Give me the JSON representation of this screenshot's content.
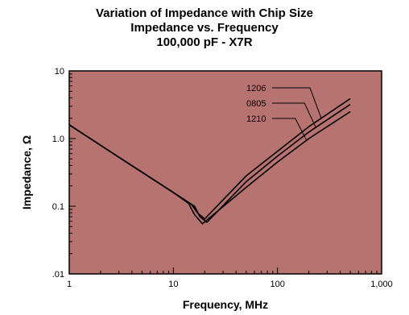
{
  "chart_data": {
    "type": "line",
    "title": "Variation of Impedance with Chip Size",
    "subtitle": "Impedance vs. Frequency",
    "subtitle2": "100,000 pF - X7R",
    "xlabel": "Frequency, MHz",
    "ylabel": "Impedance, Ω",
    "xscale": "log",
    "yscale": "log",
    "xlim": [
      1,
      1000
    ],
    "ylim": [
      0.01,
      10
    ],
    "x_ticks": [
      1,
      10,
      100,
      1000
    ],
    "x_tick_labels": [
      "1",
      "10",
      "100",
      "1,000"
    ],
    "y_ticks": [
      0.01,
      0.1,
      1,
      10
    ],
    "y_tick_labels": [
      ".01",
      "0.1",
      "1.0",
      "10"
    ],
    "grid": false,
    "legend": "annotated labels, upper right",
    "series": [
      {
        "name": "1206",
        "x": [
          1,
          3,
          10,
          15,
          17,
          20,
          50,
          100,
          200,
          500
        ],
        "y": [
          1.6,
          0.53,
          0.16,
          0.105,
          0.08,
          0.065,
          0.28,
          0.65,
          1.5,
          3.9
        ]
      },
      {
        "name": "0805",
        "x": [
          1,
          3,
          10,
          16,
          18,
          21,
          50,
          100,
          200,
          500
        ],
        "y": [
          1.6,
          0.53,
          0.16,
          0.1,
          0.07,
          0.058,
          0.23,
          0.55,
          1.25,
          3.2
        ]
      },
      {
        "name": "1210",
        "x": [
          1,
          3,
          10,
          14,
          16,
          19,
          50,
          100,
          200,
          500
        ],
        "y": [
          1.6,
          0.53,
          0.16,
          0.11,
          0.075,
          0.055,
          0.19,
          0.45,
          1.0,
          2.5
        ]
      }
    ],
    "colors": {
      "plot_background": "#b77370",
      "line": "#000000",
      "frame": "#000000"
    }
  }
}
